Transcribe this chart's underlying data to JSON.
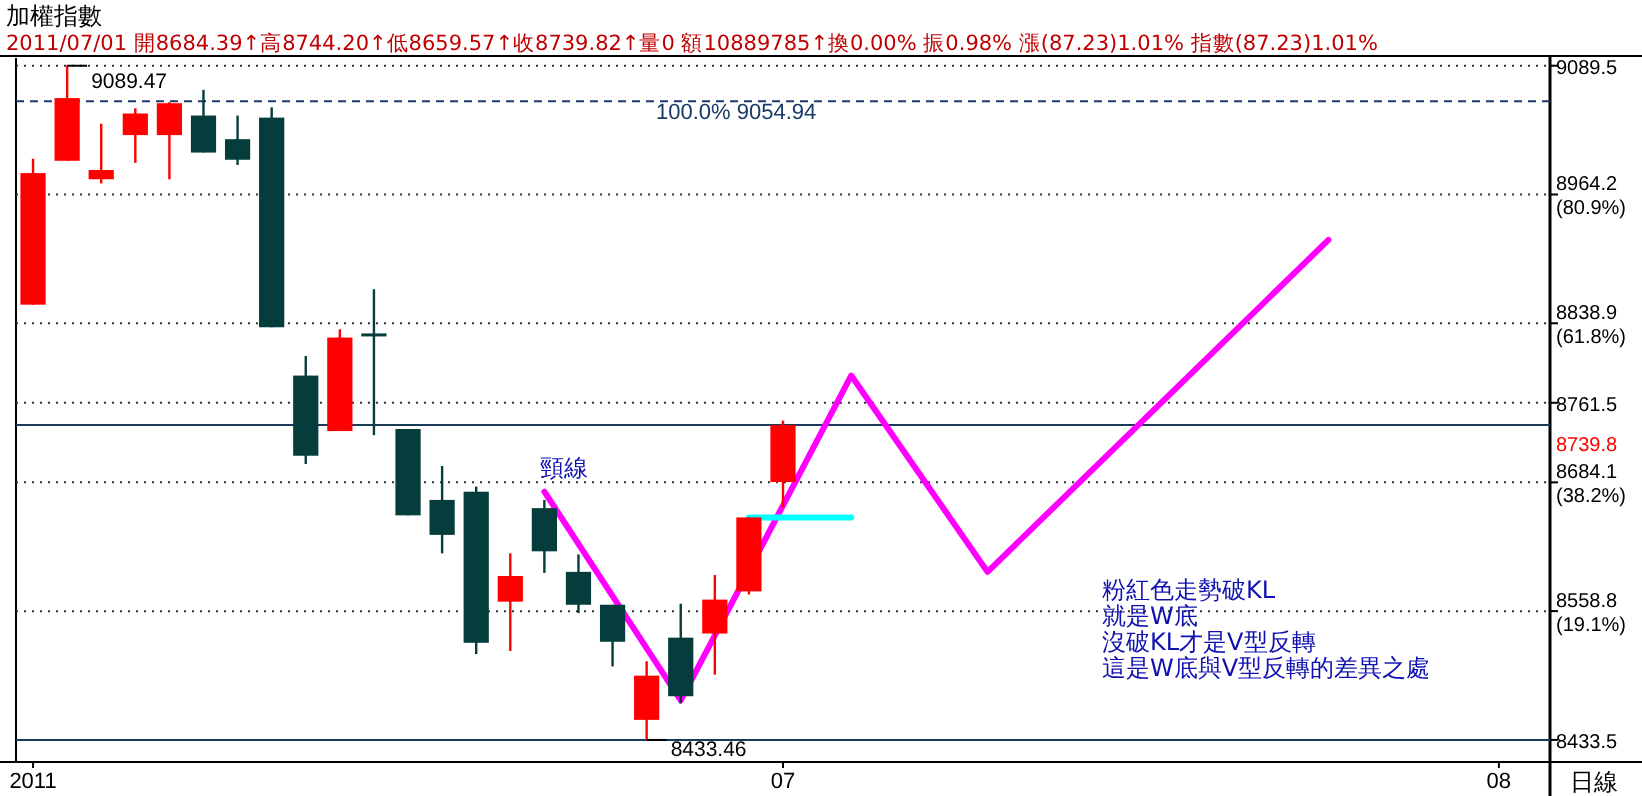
{
  "chart_data": {
    "type": "candlestick",
    "title": "加權指數",
    "subtitle": "2011/07/01 開8684.39↑高8744.20↑低8659.57↑收8739.82↑量0 額10889785↑換0.00% 振0.98% 漲(87.23)1.01% 指數(87.23)1.01%",
    "xlabel": "日線",
    "categories": [
      "2011",
      null,
      null,
      null,
      null,
      null,
      null,
      null,
      null,
      null,
      null,
      null,
      null,
      null,
      null,
      null,
      null,
      null,
      null,
      null,
      null,
      null,
      "07",
      null,
      null,
      null,
      null,
      null,
      null,
      null,
      null,
      null,
      null,
      null,
      null,
      null,
      null,
      null,
      null,
      null,
      null,
      null,
      null,
      "08",
      null
    ],
    "ohlc": [
      [
        8857,
        8999,
        8857,
        8985
      ],
      [
        8997,
        9089.47,
        8997,
        9058
      ],
      [
        8979,
        9033,
        8975,
        8988
      ],
      [
        9022,
        9048,
        8995,
        9043
      ],
      [
        9022,
        9054,
        8979,
        9053
      ],
      [
        9041,
        9066,
        9005,
        9005
      ],
      [
        9018,
        9041,
        8993,
        8998
      ],
      [
        9039,
        9049,
        8835,
        8835
      ],
      [
        8788,
        8807,
        8702,
        8710
      ],
      [
        8734,
        8833,
        8734,
        8825
      ],
      [
        8829,
        8872,
        8730,
        8829
      ],
      [
        8736,
        8736,
        8652,
        8652
      ],
      [
        8667,
        8700,
        8615,
        8633
      ],
      [
        8675,
        8680,
        8517,
        8528
      ],
      [
        8568,
        8615,
        8520,
        8593
      ],
      [
        8659,
        8667,
        8596,
        8617
      ],
      [
        8597,
        8614,
        8557,
        8565
      ],
      [
        8565,
        8565,
        8505,
        8529
      ],
      [
        8453,
        8510,
        8433.46,
        8496
      ],
      [
        8533,
        8566,
        8469,
        8476
      ],
      [
        8537,
        8594,
        8497,
        8570
      ],
      [
        8578,
        8650,
        8575,
        8650
      ],
      [
        8684.39,
        8744.2,
        8659.57,
        8739.82
      ],
      null,
      null,
      null,
      null,
      null,
      null,
      null,
      null,
      null,
      null,
      null,
      null,
      null,
      null,
      null,
      null,
      null,
      null,
      null,
      null,
      null,
      null
    ],
    "colors": [
      "#ff0000",
      "#ff0000",
      "#ff0000",
      "#ff0000",
      "#ff0000",
      "#053c3c",
      "#053c3c",
      "#053c3c",
      "#053c3c",
      "#ff0000",
      "#053c3c",
      "#053c3c",
      "#053c3c",
      "#053c3c",
      "#ff0000",
      "#053c3c",
      "#053c3c",
      "#053c3c",
      "#ff0000",
      "#053c3c",
      "#ff0000",
      "#ff0000",
      "#ff0000",
      null,
      null,
      null,
      null,
      null,
      null,
      null,
      null,
      null,
      null,
      null,
      null,
      null,
      null,
      null,
      null,
      null,
      null,
      null,
      null,
      null,
      null
    ],
    "series": [
      {
        "type": "line",
        "color": "#ff00ff",
        "values": [
          null,
          null,
          null,
          null,
          null,
          null,
          null,
          null,
          null,
          null,
          null,
          null,
          null,
          null,
          null,
          8675,
          null,
          null,
          null,
          8472,
          null,
          null,
          null,
          null,
          8788,
          null,
          null,
          null,
          8597,
          null,
          null,
          null,
          null,
          null,
          null,
          null,
          null,
          null,
          8920,
          null,
          null,
          null,
          null,
          null,
          null
        ]
      },
      {
        "type": "line",
        "color": "#00ffff",
        "values": [
          null,
          null,
          null,
          null,
          null,
          null,
          null,
          null,
          null,
          null,
          null,
          null,
          null,
          null,
          null,
          null,
          null,
          null,
          null,
          null,
          null,
          8650,
          8650,
          8650,
          8650,
          null,
          null,
          null,
          null,
          null,
          null,
          null,
          null,
          null,
          null,
          null,
          null,
          null,
          null,
          null,
          null,
          null,
          null,
          null,
          null
        ]
      }
    ],
    "ylim": [
      8412,
      9097
    ],
    "yticks": [
      9089.5,
      {
        "value": 8964.2,
        "label": "8964.2\n(80.9%)"
      },
      {
        "value": 8838.9,
        "label": "8838.9\n(61.8%)"
      },
      8761.5,
      {
        "value": 8684.1,
        "label": "8684.1\n(38.2%)"
      },
      {
        "value": 8558.8,
        "label": "8558.8\n(19.1%)"
      },
      8433.5
    ],
    "grid": "y",
    "ref_lines": [
      {
        "axis": "y",
        "value": 9054.94,
        "label": "100.0% 9054.94",
        "color": "#1a3a6a",
        "line_style": "dashed"
      },
      {
        "axis": "y",
        "value": 8739.82,
        "label": "8739.8",
        "color": "#1a3a5a"
      },
      {
        "axis": "y",
        "value": 8433.46,
        "color": "#1a3a5a"
      }
    ],
    "annotations": [
      "9089.47",
      "8433.46",
      "頸線",
      "粉紅色走勢破KL",
      "就是W底",
      "沒破KL才是V型反轉",
      "這是W底與V型反轉的差異之處"
    ]
  }
}
